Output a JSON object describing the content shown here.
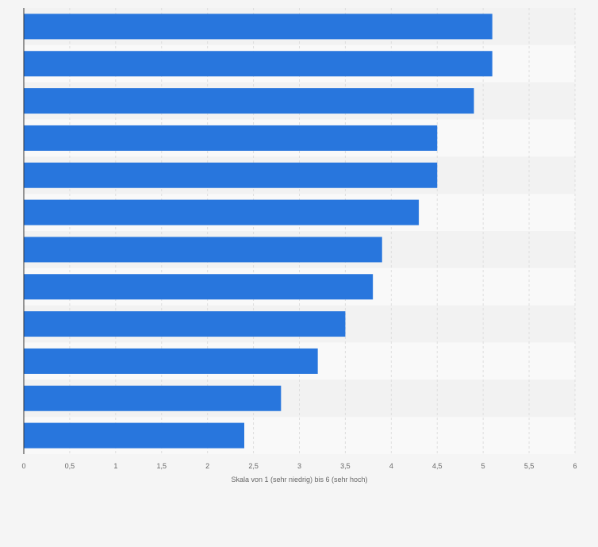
{
  "chart_data": {
    "type": "bar",
    "orientation": "horizontal",
    "title": "",
    "xlabel": "Skala von 1 (sehr niedrig) bis 6 (sehr hoch)",
    "ylabel": "",
    "xlim": [
      0,
      6
    ],
    "x_ticks": [
      0,
      0.5,
      1,
      1.5,
      2,
      2.5,
      3,
      3.5,
      4,
      4.5,
      5,
      5.5,
      6
    ],
    "x_tick_labels": [
      "0",
      "0,5",
      "1",
      "1,5",
      "2",
      "2,5",
      "3",
      "3,5",
      "4",
      "4,5",
      "5",
      "5,5",
      "6"
    ],
    "categories": [
      "",
      "",
      "",
      "",
      "",
      "",
      "",
      "",
      "",
      "",
      "",
      ""
    ],
    "values": [
      5.1,
      5.1,
      4.9,
      4.5,
      4.5,
      4.3,
      3.9,
      3.8,
      3.5,
      3.2,
      2.8,
      2.4
    ],
    "grid": true,
    "legend": "none",
    "colors": {
      "bar": "#2876dd",
      "band_light": "#f9f9f9",
      "band_dark": "#f2f2f2",
      "grid": "#dddddd",
      "axis": "#333333",
      "text": "#666666"
    }
  }
}
